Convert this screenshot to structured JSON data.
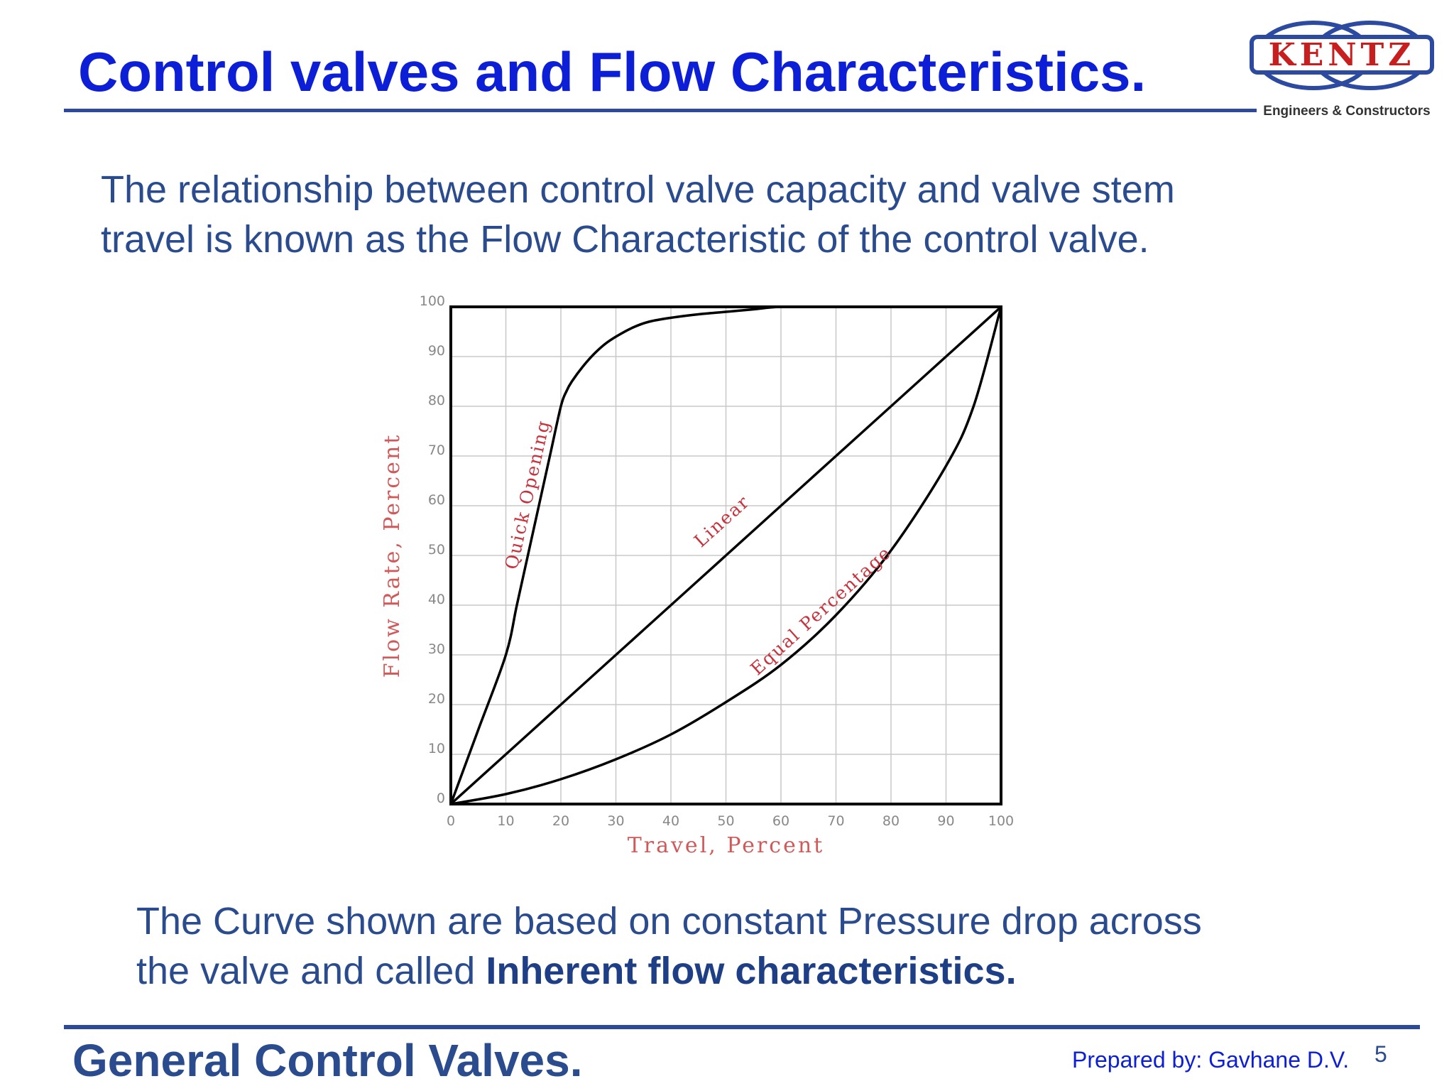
{
  "slide": {
    "title": "Control valves and Flow Characteristics.",
    "intro_line1": "The relationship between control valve capacity and  valve stem",
    "intro_line2": "travel is known as the Flow Characteristic of  the control valve.",
    "note_line1": "The Curve shown are based on constant Pressure drop across",
    "note_line2_plain": "the valve and called ",
    "note_line2_bold": "Inherent flow characteristics.",
    "footer_title": "General Control Valves.",
    "prepared_by": "Prepared by: Gavhane D.V.",
    "page_number": "5"
  },
  "logo": {
    "name": "KENTZ",
    "tagline": "Engineers & Constructors",
    "colors": {
      "ring": "#2c4aa0",
      "text": "#c81e1e"
    }
  },
  "colors": {
    "title": "#0d1fd6",
    "body_text": "#2a4c8e",
    "rule": "#2d4a9a",
    "axis_label": "#d05a5a",
    "tick_label": "#888888",
    "grid": "#c8c8c8",
    "curve": "#000000"
  },
  "chart_data": {
    "type": "line",
    "xlabel": "Travel,  Percent",
    "ylabel": "Flow  Rate,  Percent",
    "xlim": [
      0,
      100
    ],
    "ylim": [
      0,
      100
    ],
    "grid": true,
    "x_ticks": [
      0,
      10,
      20,
      30,
      40,
      50,
      60,
      70,
      80,
      90,
      100
    ],
    "y_ticks": [
      0,
      10,
      20,
      30,
      40,
      50,
      60,
      70,
      80,
      90,
      100
    ],
    "series": [
      {
        "name": "Quick  Opening",
        "x": [
          0,
          5,
          10,
          12,
          14,
          16,
          18,
          20,
          21,
          22,
          24,
          26,
          28,
          30,
          33,
          36,
          40,
          45,
          50,
          55,
          60,
          70,
          80,
          90,
          100
        ],
        "y": [
          0,
          15,
          30,
          40,
          50,
          60,
          70,
          80,
          83,
          85,
          88,
          90.5,
          92.5,
          94,
          95.8,
          97,
          97.8,
          98.5,
          99,
          99.5,
          100,
          100,
          100,
          100,
          100
        ],
        "label_at": [
          15,
          62
        ]
      },
      {
        "name": "Linear",
        "x": [
          0,
          10,
          20,
          30,
          40,
          50,
          60,
          70,
          80,
          90,
          100
        ],
        "y": [
          0,
          10,
          20,
          30,
          40,
          50,
          60,
          70,
          80,
          90,
          100
        ],
        "label_at": [
          50,
          56
        ]
      },
      {
        "name": "Equal  Percentage",
        "x": [
          0,
          10,
          20,
          30,
          40,
          50,
          60,
          70,
          80,
          90,
          95,
          100
        ],
        "y": [
          0,
          2,
          5,
          9,
          14,
          20.5,
          28,
          38,
          51,
          68,
          80,
          100
        ],
        "label_at": [
          68,
          38
        ]
      }
    ]
  }
}
